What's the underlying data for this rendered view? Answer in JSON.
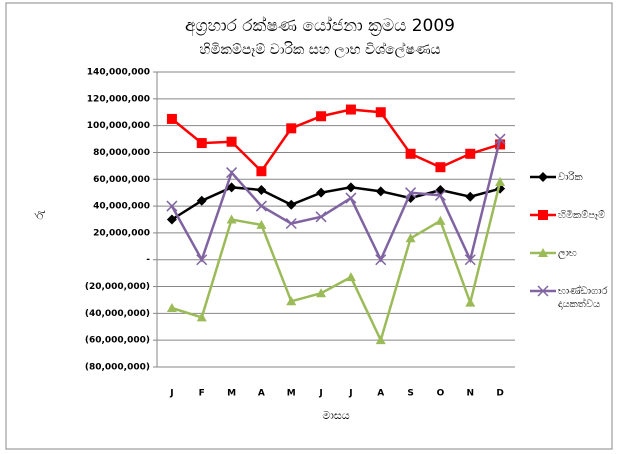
{
  "chart_data": {
    "type": "line",
    "title": "අග්‍රහාර රක්ෂණ යෝජනා ක්‍රමය 2009",
    "subtitle": "හිමිකම්පෑම් වාරික සහ ලාභ විශ්ලේෂණය",
    "y_label": "රු",
    "x_label": "මාසය",
    "categories": [
      "J",
      "F",
      "M",
      "A",
      "M",
      "J",
      "J",
      "A",
      "S",
      "O",
      "N",
      "D"
    ],
    "series": [
      {
        "name": "වාරික",
        "color": "#000000",
        "marker": "diamond",
        "values": [
          30000000,
          44000000,
          54000000,
          52000000,
          41000000,
          50000000,
          54000000,
          51000000,
          46000000,
          52000000,
          47000000,
          53000000
        ]
      },
      {
        "name": "හිමිකම්පෑම්",
        "color": "#ff0000",
        "marker": "square",
        "values": [
          105000000,
          87000000,
          88000000,
          66000000,
          98000000,
          107000000,
          112000000,
          110000000,
          79000000,
          69000000,
          79000000,
          86000000
        ]
      },
      {
        "name": "ලාභ",
        "color": "#9bbb59",
        "marker": "triangle",
        "values": [
          -36000000,
          -43000000,
          30000000,
          26000000,
          -31000000,
          -25000000,
          -13000000,
          -60000000,
          16000000,
          29000000,
          -32000000,
          58000000
        ]
      },
      {
        "name": "භාණ්ඩාගාර දායකත්වය",
        "color": "#8064a2",
        "marker": "x",
        "values": [
          40000000,
          0,
          65000000,
          40000000,
          27000000,
          32000000,
          46000000,
          0,
          50000000,
          48000000,
          0,
          90000000
        ]
      }
    ],
    "ylim": [
      -80000000,
      140000000
    ],
    "yticks": [
      {
        "value": -80000000,
        "label": "(80,000,000)"
      },
      {
        "value": -60000000,
        "label": "(60,000,000)"
      },
      {
        "value": -40000000,
        "label": "(40,000,000)"
      },
      {
        "value": -20000000,
        "label": "(20,000,000)"
      },
      {
        "value": 0,
        "label": "-"
      },
      {
        "value": 20000000,
        "label": "20,000,000"
      },
      {
        "value": 40000000,
        "label": "40,000,000"
      },
      {
        "value": 60000000,
        "label": "60,000,000"
      },
      {
        "value": 80000000,
        "label": "80,000,000"
      },
      {
        "value": 100000000,
        "label": "100,000,000"
      },
      {
        "value": 120000000,
        "label": "120,000,000"
      },
      {
        "value": 140000000,
        "label": "140,000,000"
      }
    ],
    "grid": true,
    "legend": "right"
  }
}
